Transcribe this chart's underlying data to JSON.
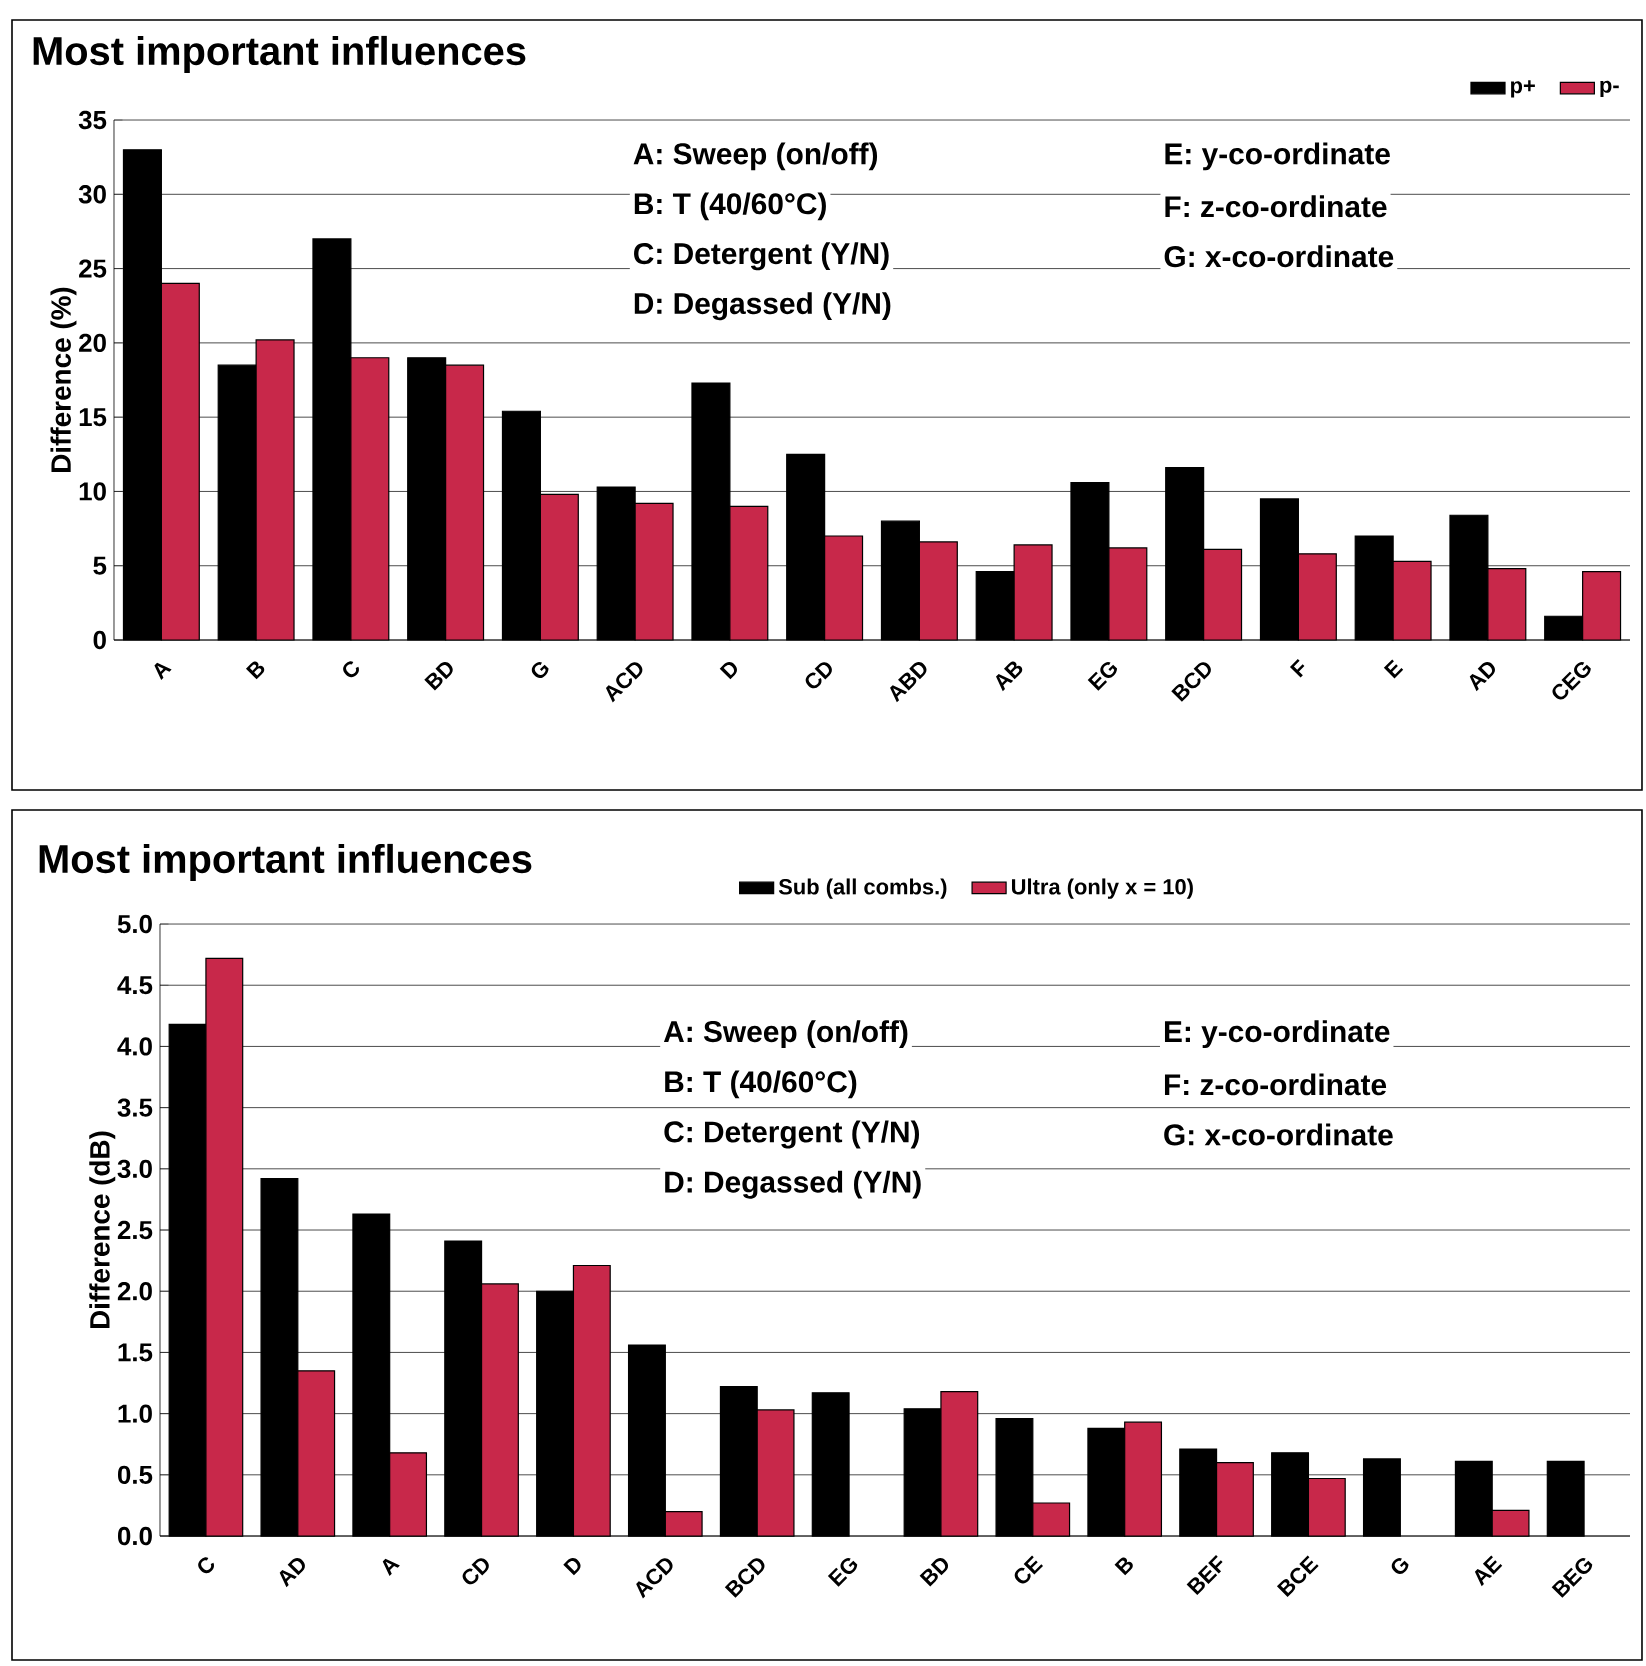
{
  "chart_data": [
    {
      "type": "bar",
      "title": "Most important influences",
      "ylabel": "Difference (%)",
      "categories": [
        "A",
        "B",
        "C",
        "BD",
        "G",
        "ACD",
        "D",
        "CD",
        "ABD",
        "AB",
        "EG",
        "BCD",
        "F",
        "E",
        "AD",
        "CEG"
      ],
      "series": [
        {
          "name": "p+",
          "color": "#000000",
          "values": [
            33,
            18.5,
            27,
            19,
            15.4,
            10.3,
            17.3,
            12.5,
            8,
            4.6,
            10.6,
            11.6,
            9.5,
            7,
            8.4,
            1.6
          ]
        },
        {
          "name": "p-",
          "color": "#c8284a",
          "values": [
            24,
            20.2,
            19,
            18.5,
            9.8,
            9.2,
            9,
            7,
            6.6,
            6.4,
            6.2,
            6.1,
            5.8,
            5.3,
            4.8,
            4.6
          ]
        }
      ],
      "ylim": [
        0,
        35
      ],
      "yticks": [
        0,
        5,
        10,
        15,
        20,
        25,
        30,
        35
      ],
      "grid": "y",
      "legend": "top right",
      "annotations": [
        "A: Sweep (on/off)",
        "B: T (40/60°C)",
        "C: Detergent (Y/N)",
        "D: Degassed (Y/N)",
        "E: y-co-ordinate",
        "F: z-co-ordinate",
        "G: x-co-ordinate"
      ]
    },
    {
      "type": "bar",
      "title": "Most important influences",
      "ylabel": "Difference (dB)",
      "categories": [
        "C",
        "AD",
        "A",
        "CD",
        "D",
        "ACD",
        "BCD",
        "EG",
        "BD",
        "CE",
        "B",
        "BEF",
        "BCE",
        "G",
        "AE",
        "BEG"
      ],
      "series": [
        {
          "name": "Sub (all combs.)",
          "color": "#000000",
          "values": [
            4.18,
            2.92,
            2.63,
            2.41,
            2.0,
            1.56,
            1.22,
            1.17,
            1.04,
            0.96,
            0.88,
            0.71,
            0.68,
            0.63,
            0.61,
            0.61
          ]
        },
        {
          "name": "Ultra (only x = 10)",
          "color": "#c8284a",
          "values": [
            4.72,
            1.35,
            0.68,
            2.06,
            2.21,
            0.2,
            1.03,
            null,
            1.18,
            0.27,
            0.93,
            0.6,
            0.47,
            null,
            0.21,
            null
          ]
        }
      ],
      "ylim": [
        0,
        5
      ],
      "yticks": [
        {
          "value": 0,
          "label": "0.0"
        },
        {
          "value": 0.5,
          "label": "0.5"
        },
        {
          "value": 1,
          "label": "1.0"
        },
        {
          "value": 1.5,
          "label": "1.5"
        },
        {
          "value": 2,
          "label": "2.0"
        },
        {
          "value": 2.5,
          "label": "2.5"
        },
        {
          "value": 3,
          "label": "3.0"
        },
        {
          "value": 3.5,
          "label": "3.5"
        },
        {
          "value": 4,
          "label": "4.0"
        },
        {
          "value": 4.5,
          "label": "4.5"
        },
        {
          "value": 5,
          "label": "5.0"
        }
      ],
      "grid": "y",
      "legend": "top",
      "annotations": [
        "A: Sweep (on/off)",
        "B: T (40/60°C)",
        "C: Detergent (Y/N)",
        "D: Degassed (Y/N)",
        "E: y-co-ordinate",
        "F: z-co-ordinate",
        "G: x-co-ordinate"
      ]
    }
  ]
}
